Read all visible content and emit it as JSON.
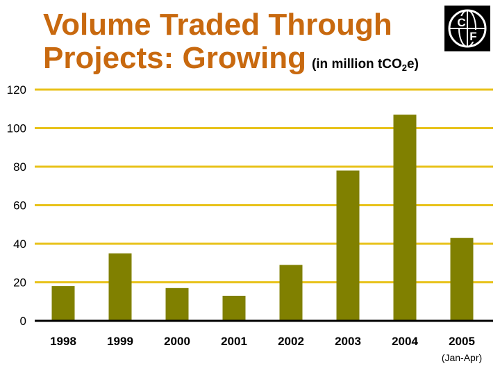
{
  "header": {
    "title_line1": "Volume Traded Through",
    "title_line2": "Projects: Growing",
    "unit_prefix": "(in million tCO",
    "unit_sub": "2",
    "unit_suffix": "e)"
  },
  "logo": {
    "icon": "cf-globe-logo-icon",
    "letters": [
      "C",
      "F"
    ]
  },
  "chart_data": {
    "type": "bar",
    "title": "Volume Traded Through Projects: Growing",
    "units": "(in million tCO2e)",
    "categories": [
      "1998",
      "1999",
      "2000",
      "2001",
      "2002",
      "2003",
      "2004",
      "2005"
    ],
    "category_note": "(Jan-Apr)",
    "values": [
      18,
      35,
      17,
      13,
      29,
      78,
      107,
      43
    ],
    "ylim": [
      0,
      120
    ],
    "yticks": [
      0,
      20,
      40,
      60,
      80,
      100,
      120
    ],
    "grid": true,
    "bar_color": "#808000",
    "grid_color": "#e8c21a",
    "xlabel": "",
    "ylabel": ""
  },
  "colors": {
    "title": "#c8690f",
    "bar": "#808000",
    "grid": "#e8c21a",
    "axis": "#000000"
  }
}
